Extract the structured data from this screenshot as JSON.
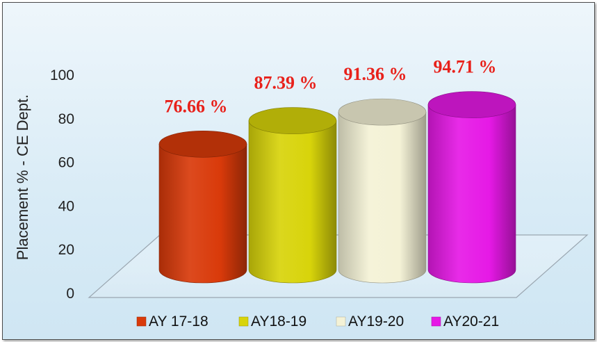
{
  "chart_data": {
    "type": "bar",
    "categories": [
      "AY 17-18",
      "AY18-19",
      "AY19-20",
      "AY20-21"
    ],
    "values": [
      76.66,
      87.39,
      91.36,
      94.71
    ],
    "data_labels": [
      "76.66 %",
      "87.39 %",
      "91.36 %",
      "94.71 %"
    ],
    "colors": [
      "#d93a0a",
      "#d8d40a",
      "#f4f2d6",
      "#e619e6"
    ],
    "title": "",
    "xlabel": "",
    "ylabel": "Placement % - CE Dept.",
    "ylim": [
      0,
      100
    ],
    "yticks": [
      "0",
      "20",
      "40",
      "60",
      "80",
      "100"
    ],
    "legend_position": "bottom",
    "grid": false,
    "style": "3d-cylinder"
  }
}
